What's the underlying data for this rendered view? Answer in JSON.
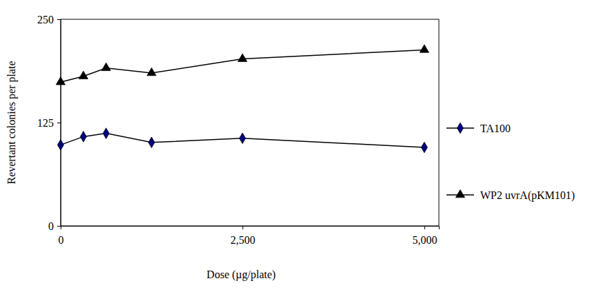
{
  "chart_data": {
    "type": "line",
    "x_label": "Dose (µg/plate)",
    "y_label": "Revertant colonies per plate",
    "x": [
      0,
      313,
      625,
      1250,
      2500,
      5000
    ],
    "series": [
      {
        "name": "TA100",
        "color": "#000080",
        "marker": "diamond",
        "values": [
          98,
          108,
          112,
          101,
          106,
          95
        ]
      },
      {
        "name": "WP2 uvrA(pKM101)",
        "color": "#000000",
        "marker": "triangle",
        "values": [
          174,
          181,
          191,
          185,
          202,
          213
        ]
      }
    ],
    "xlim": [
      0,
      5200
    ],
    "xticks": [
      0,
      {
        "value": 2500,
        "label": "2,500"
      },
      {
        "value": 5000,
        "label": "5,000"
      }
    ],
    "ylim": [
      0,
      250
    ],
    "yticks": [
      0,
      125,
      250
    ],
    "grid": false,
    "legend": "right"
  }
}
